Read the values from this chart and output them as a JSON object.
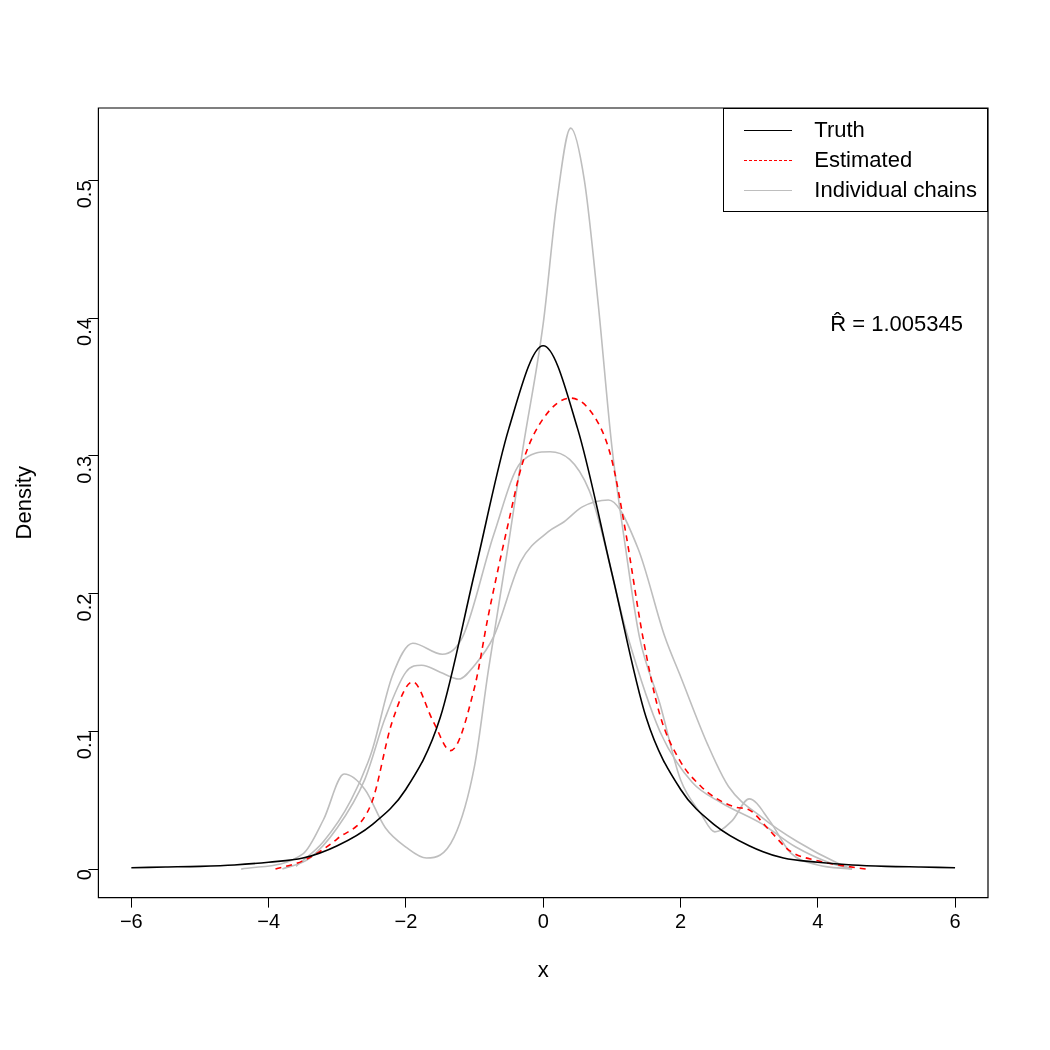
{
  "chart_data": {
    "type": "line",
    "xlabel": "x",
    "ylabel": "Density",
    "xlim": [
      -6.48,
      6.48
    ],
    "xticks": [
      -6,
      -4,
      -2,
      0,
      2,
      4,
      6
    ],
    "ylim": [
      -0.0207,
      0.5526
    ],
    "yticks": [
      0.0,
      0.1,
      0.2,
      0.3,
      0.4,
      0.5
    ],
    "grid": false,
    "legend": "top right",
    "marker": "none",
    "annotations": [
      "R̂ = 1.005345"
    ],
    "series": [
      {
        "name": "Truth",
        "color": "#000000",
        "line_style": "solid",
        "x": [
          -6,
          -5.5,
          -5,
          -4.5,
          -4,
          -3.5,
          -3,
          -2.5,
          -2,
          -1.5,
          -1,
          -0.5,
          0,
          0.5,
          1,
          1.5,
          2,
          2.5,
          3,
          3.5,
          4,
          4.5,
          5,
          5.5,
          6
        ],
        "values": [
          0.001,
          0.0015,
          0.002,
          0.003,
          0.005,
          0.008,
          0.017,
          0.032,
          0.058,
          0.11,
          0.215,
          0.32,
          0.38,
          0.32,
          0.215,
          0.11,
          0.058,
          0.032,
          0.017,
          0.008,
          0.005,
          0.003,
          0.002,
          0.0015,
          0.001
        ]
      },
      {
        "name": "Estimated",
        "color": "#ff0000",
        "line_style": "dashed",
        "x": [
          -3.9,
          -3.5,
          -3,
          -2.5,
          -2.2,
          -1.9,
          -1.6,
          -1.35,
          -1,
          -0.8,
          -0.5,
          -0.3,
          0,
          0.4,
          0.8,
          1,
          1.2,
          1.45,
          1.7,
          2,
          2.3,
          2.5,
          2.8,
          3,
          3.3,
          3.6,
          4,
          4.3,
          4.7
        ],
        "values": [
          0.0,
          0.006,
          0.022,
          0.048,
          0.107,
          0.136,
          0.107,
          0.086,
          0.132,
          0.184,
          0.253,
          0.295,
          0.327,
          0.342,
          0.324,
          0.297,
          0.245,
          0.169,
          0.112,
          0.078,
          0.06,
          0.052,
          0.045,
          0.043,
          0.028,
          0.013,
          0.006,
          0.003,
          0.0
        ]
      },
      {
        "name": "Individual chains",
        "color": "#bebebe",
        "line_style": "solid",
        "x": [
          -4.4,
          -3.5,
          -3.2,
          -2.9,
          -2.6,
          -2.3,
          -2,
          -1.7,
          -1.3,
          -1,
          -0.8,
          -0.5,
          -0.3,
          0,
          0.2,
          0.4,
          0.6,
          0.8,
          1,
          1.2,
          1.4,
          1.7,
          2,
          2.3,
          2.5,
          2.75,
          3,
          3.3,
          3.6,
          4,
          4.5
        ],
        "values": [
          0.0,
          0.011,
          0.036,
          0.069,
          0.058,
          0.03,
          0.016,
          0.008,
          0.023,
          0.075,
          0.144,
          0.238,
          0.304,
          0.396,
          0.485,
          0.538,
          0.5,
          0.411,
          0.307,
          0.233,
          0.169,
          0.12,
          0.065,
          0.04,
          0.027,
          0.035,
          0.051,
          0.035,
          0.012,
          0.003,
          0.0
        ]
      },
      {
        "color": "#bebebe",
        "line_style": "solid",
        "x": [
          -3.6,
          -3.2,
          -2.8,
          -2.5,
          -2.2,
          -1.9,
          -1.47,
          -1.17,
          -0.72,
          -0.33,
          0.1,
          0.67,
          1.23,
          1.7,
          2.17,
          2.6,
          3.18,
          3.68,
          4.2,
          4.5
        ],
        "values": [
          0.002,
          0.02,
          0.05,
          0.085,
          0.14,
          0.164,
          0.156,
          0.169,
          0.243,
          0.295,
          0.303,
          0.275,
          0.169,
          0.1,
          0.063,
          0.048,
          0.033,
          0.016,
          0.004,
          0.0
        ]
      },
      {
        "color": "#bebebe",
        "line_style": "solid",
        "x": [
          -3.8,
          -3.4,
          -3,
          -2.6,
          -2.3,
          -2,
          -1.77,
          -1.5,
          -1.23,
          -1,
          -0.72,
          -0.33,
          0.075,
          0.3,
          0.57,
          0.95,
          1.38,
          1.77,
          2,
          2.4,
          2.7,
          3.2,
          3.7,
          4.3,
          4.5
        ],
        "values": [
          0.0,
          0.008,
          0.03,
          0.065,
          0.11,
          0.143,
          0.148,
          0.143,
          0.138,
          0.148,
          0.169,
          0.223,
          0.245,
          0.252,
          0.263,
          0.268,
          0.233,
          0.169,
          0.14,
          0.09,
          0.06,
          0.037,
          0.02,
          0.004,
          0.0
        ]
      }
    ]
  }
}
